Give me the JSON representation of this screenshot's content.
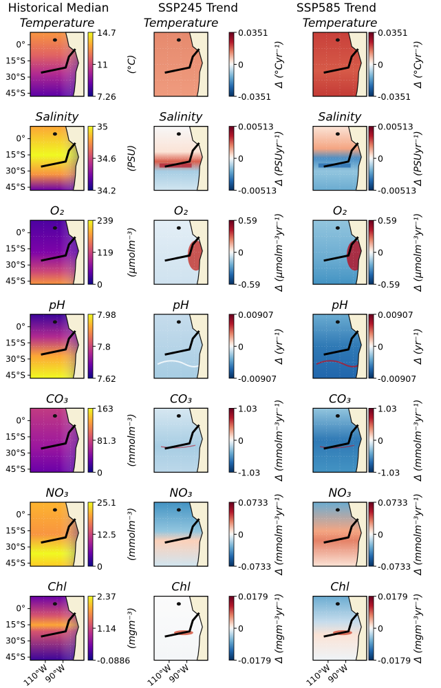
{
  "chart_data": {
    "type": "heatmap",
    "layout": "7 rows x 3 columns of map panels with colorbars",
    "columns": [
      {
        "title": "Historical Median",
        "colormap": "plasma"
      },
      {
        "title": "SSP245 Trend",
        "colormap": "RdBu_r"
      },
      {
        "title": "SSP585 Trend",
        "colormap": "RdBu_r"
      }
    ],
    "variables": [
      {
        "key": "T",
        "name": "Temperature",
        "units": "(°C)",
        "trend_units": "Δ (°Cyr⁻¹)",
        "hist_ticks": [
          "14.7",
          "11",
          "7.26"
        ],
        "trend_ticks": [
          "0.0351",
          "0",
          "-0.0351"
        ]
      },
      {
        "key": "S",
        "name": "Salinity",
        "units": "(PSU)",
        "trend_units": "Δ (PSUyr⁻¹)",
        "hist_ticks": [
          "35",
          "34.6",
          "34.2"
        ],
        "trend_ticks": [
          "0.00513",
          "0",
          "-0.00513"
        ]
      },
      {
        "key": "O2",
        "name": "O₂",
        "units": "(μmolm⁻³)",
        "trend_units": "Δ (μmolm⁻³yr⁻¹)",
        "hist_ticks": [
          "239",
          "119",
          "0"
        ],
        "trend_ticks": [
          "0.59",
          "0",
          "-0.59"
        ]
      },
      {
        "key": "pH",
        "name": "pH",
        "units": "",
        "trend_units": "Δ (yr⁻¹)",
        "hist_ticks": [
          "7.98",
          "7.8",
          "7.62"
        ],
        "trend_ticks": [
          "0.00907",
          "0",
          "-0.00907"
        ]
      },
      {
        "key": "CO3",
        "name": "CO₃",
        "units": "(mmolm⁻³)",
        "trend_units": "Δ (mmolm⁻³yr⁻¹)",
        "hist_ticks": [
          "163",
          "81.3",
          "0"
        ],
        "trend_ticks": [
          "1.03",
          "0",
          "-1.03"
        ]
      },
      {
        "key": "NO3",
        "name": "NO₃",
        "units": "(mmolm⁻³)",
        "trend_units": "Δ (mmolm⁻³yr⁻¹)",
        "hist_ticks": [
          "25.1",
          "12.5",
          "0"
        ],
        "trend_ticks": [
          "0.0733",
          "0",
          "-0.0733"
        ]
      },
      {
        "key": "Chl",
        "name": "Chl",
        "units": "(mgm⁻³)",
        "trend_units": "Δ (mgm⁻³yr⁻¹)",
        "hist_ticks": [
          "2.37",
          "1.14",
          "-0.0886"
        ],
        "trend_ticks": [
          "0.0179",
          "0",
          "-0.0179"
        ]
      }
    ],
    "lat_ticks": [
      "0°",
      "15°S",
      "30°S",
      "45°S"
    ],
    "lon_ticks": [
      "110°W",
      "90°W"
    ]
  }
}
